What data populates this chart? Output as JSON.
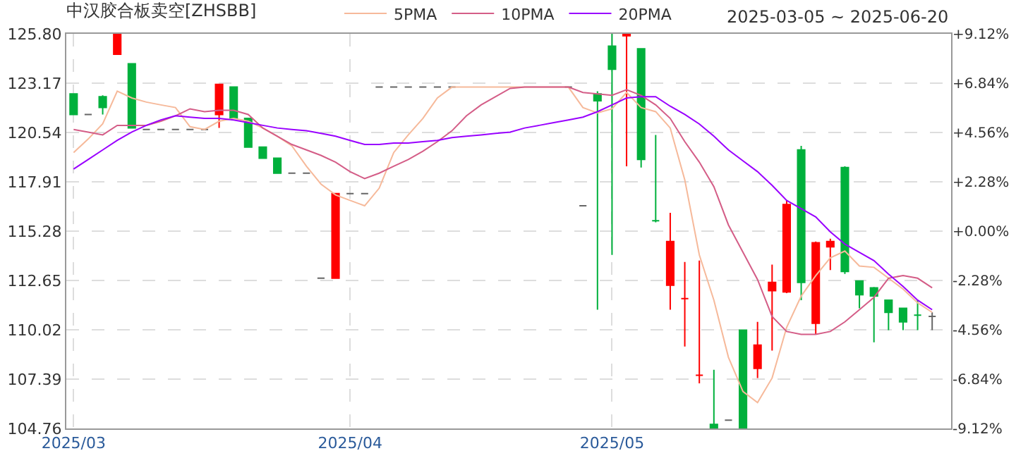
{
  "chart_data": {
    "type": "candlestick",
    "title": "中汉胶合板卖空[ZHSBB]",
    "annotations": [
      "2025-03-05 ~ 2025-06-20"
    ],
    "categories": [
      "2025/03",
      null,
      null,
      null,
      null,
      null,
      null,
      null,
      null,
      null,
      null,
      null,
      null,
      null,
      null,
      null,
      null,
      null,
      null,
      "2025/04",
      null,
      null,
      null,
      null,
      null,
      null,
      null,
      null,
      null,
      null,
      null,
      null,
      null,
      null,
      null,
      null,
      null,
      "2025/05",
      null,
      null,
      null,
      null,
      null,
      null,
      null,
      null,
      null,
      null,
      null,
      null,
      null,
      null,
      null,
      null,
      null,
      null,
      null,
      null,
      null,
      null
    ],
    "ohlc": [
      [
        122.6,
        122.6,
        121.5,
        121.5
      ],
      [
        121.5,
        121.5,
        121.5,
        121.5
      ],
      [
        122.45,
        122.52,
        121.5,
        121.87
      ],
      [
        124.71,
        125.8,
        124.71,
        125.8
      ],
      [
        124.2,
        124.2,
        120.78,
        120.78
      ],
      [
        120.7,
        120.7,
        120.7,
        120.7
      ],
      [
        120.7,
        120.7,
        120.7,
        120.7
      ],
      [
        120.7,
        120.7,
        120.7,
        120.7
      ],
      [
        120.7,
        120.7,
        120.7,
        120.7
      ],
      [
        120.7,
        120.7,
        120.7,
        120.7
      ],
      [
        121.5,
        123.1,
        120.78,
        123.1
      ],
      [
        122.96,
        122.96,
        121.29,
        121.29
      ],
      [
        121.29,
        121.29,
        119.76,
        119.76
      ],
      [
        119.76,
        119.76,
        119.17,
        119.17
      ],
      [
        119.17,
        119.17,
        118.37,
        118.37
      ],
      [
        118.37,
        118.37,
        118.37,
        118.37
      ],
      [
        118.37,
        118.37,
        118.37,
        118.37
      ],
      [
        112.77,
        112.77,
        112.77,
        112.77
      ],
      [
        112.77,
        117.28,
        112.77,
        117.28
      ],
      [
        117.28,
        117.28,
        117.28,
        117.28
      ],
      [
        117.28,
        117.28,
        117.28,
        117.28
      ],
      [
        122.96,
        122.96,
        122.96,
        122.96
      ],
      [
        122.96,
        122.96,
        122.96,
        122.96
      ],
      [
        122.96,
        122.96,
        122.96,
        122.96
      ],
      [
        122.96,
        122.96,
        122.96,
        122.96
      ],
      [
        122.96,
        122.96,
        122.96,
        122.96
      ],
      [
        122.96,
        122.96,
        122.96,
        122.96
      ],
      null,
      null,
      null,
      null,
      null,
      null,
      null,
      [
        122.96,
        122.96,
        122.96,
        122.96
      ],
      [
        116.63,
        116.63,
        116.63,
        116.63
      ],
      [
        122.6,
        122.74,
        111.09,
        122.23
      ],
      [
        125.14,
        125.8,
        114.01,
        123.91
      ],
      [
        125.7,
        125.8,
        118.74,
        125.8
      ],
      [
        125.0,
        125.0,
        118.67,
        119.1
      ],
      [
        115.83,
        120.41,
        115.75,
        115.83
      ],
      [
        112.4,
        116.26,
        111.09,
        114.73
      ],
      [
        111.68,
        113.64,
        109.13,
        111.68
      ],
      [
        107.6,
        113.71,
        107.16,
        107.6
      ],
      [
        104.98,
        107.89,
        104.76,
        104.76
      ],
      [
        105.2,
        105.2,
        105.2,
        105.2
      ],
      [
        110.0,
        110.0,
        104.76,
        104.76
      ],
      [
        107.96,
        110.44,
        107.45,
        109.2
      ],
      [
        112.11,
        113.5,
        108.91,
        112.55
      ],
      [
        112.04,
        116.92,
        111.97,
        116.7
      ],
      [
        119.61,
        119.83,
        111.6,
        112.55
      ],
      [
        110.37,
        114.73,
        109.78,
        114.66
      ],
      [
        114.44,
        114.88,
        113.2,
        114.73
      ],
      [
        118.67,
        118.74,
        113.0,
        113.13
      ],
      [
        112.62,
        112.62,
        111.17,
        111.89
      ],
      [
        112.26,
        112.3,
        109.35,
        111.82
      ],
      [
        111.6,
        111.6,
        110.0,
        110.95
      ],
      [
        111.17,
        111.17,
        110.0,
        110.44
      ],
      [
        110.8,
        111.6,
        110.0,
        110.8
      ],
      [
        110.73,
        110.95,
        110.0,
        110.73
      ]
    ],
    "colors": [
      "#00b03c",
      "#666666",
      "#00b03c",
      "#ff0000",
      "#00b03c",
      "#666666",
      "#666666",
      "#666666",
      "#666666",
      "#666666",
      "#ff0000",
      "#00b03c",
      "#00b03c",
      "#00b03c",
      "#00b03c",
      "#666666",
      "#666666",
      "#666666",
      "#ff0000",
      "#666666",
      "#666666",
      "#666666",
      "#666666",
      "#666666",
      "#666666",
      "#666666",
      "#666666",
      "#666666",
      "#666666",
      "#666666",
      "#666666",
      "#666666",
      "#666666",
      "#666666",
      "#666666",
      "#666666",
      "#00b03c",
      "#00b03c",
      "#ff0000",
      "#00b03c",
      "#00b03c",
      "#ff0000",
      "#ff0000",
      "#ff0000",
      "#00b03c",
      "#666666",
      "#00b03c",
      "#ff0000",
      "#ff0000",
      "#ff0000",
      "#00b03c",
      "#ff0000",
      "#ff0000",
      "#00b03c",
      "#00b03c",
      "#00b03c",
      "#00b03c",
      "#00b03c",
      "#00b03c",
      "#666666"
    ],
    "series": [
      {
        "name": "5PMA",
        "type": "line",
        "color": "#f6b99a",
        "values": [
          119.47,
          120.19,
          121.0,
          122.74,
          122.38,
          122.16,
          122.01,
          121.87,
          120.85,
          120.7,
          121.14,
          121.29,
          121.14,
          120.78,
          120.34,
          119.83,
          118.74,
          117.79,
          117.21,
          116.92,
          116.63,
          117.57,
          119.47,
          120.41,
          121.29,
          122.38,
          122.96,
          122.96,
          122.96,
          122.96,
          122.96,
          122.96,
          122.96,
          122.96,
          122.96,
          121.87,
          121.58,
          121.8,
          122.67,
          121.87,
          121.65,
          120.78,
          118.01,
          114.01,
          111.6,
          108.55,
          106.73,
          106.14,
          107.45,
          110.15,
          111.82,
          112.91,
          113.86,
          114.22,
          113.42,
          113.35,
          112.77,
          112.19,
          111.46,
          110.95
        ]
      },
      {
        "name": "10PMA",
        "type": "line",
        "color": "#d45d87",
        "values": [
          120.7,
          120.56,
          120.41,
          120.92,
          120.92,
          120.92,
          121.14,
          121.43,
          121.8,
          121.65,
          121.72,
          121.72,
          121.5,
          120.78,
          120.34,
          119.9,
          119.61,
          119.32,
          118.96,
          118.45,
          118.08,
          118.37,
          118.74,
          119.1,
          119.54,
          120.05,
          120.63,
          121.43,
          122.01,
          122.45,
          122.89,
          122.96,
          122.96,
          122.96,
          122.96,
          122.67,
          122.6,
          122.52,
          122.82,
          122.52,
          122.01,
          121.29,
          120.05,
          118.96,
          117.65,
          115.61,
          114.15,
          112.7,
          110.73,
          109.93,
          109.78,
          109.78,
          109.93,
          110.44,
          111.09,
          111.75,
          112.77,
          112.91,
          112.77,
          112.26
        ]
      },
      {
        "name": "20PMA",
        "type": "line",
        "color": "#9900ff",
        "values": [
          118.59,
          119.1,
          119.61,
          120.12,
          120.56,
          120.92,
          121.21,
          121.43,
          121.36,
          121.29,
          121.29,
          121.21,
          121.07,
          120.92,
          120.78,
          120.7,
          120.63,
          120.49,
          120.34,
          120.12,
          119.9,
          119.9,
          119.98,
          119.98,
          120.05,
          120.12,
          120.27,
          120.34,
          120.41,
          120.49,
          120.56,
          120.78,
          120.92,
          121.07,
          121.21,
          121.36,
          121.65,
          122.01,
          122.38,
          122.45,
          122.45,
          121.94,
          121.5,
          120.99,
          120.34,
          119.61,
          119.03,
          118.45,
          117.72,
          116.92,
          116.48,
          116.04,
          115.24,
          114.59,
          114.15,
          113.71,
          112.99,
          112.33,
          111.6,
          111.09
        ]
      }
    ],
    "ylim": [
      104.76,
      125.8
    ],
    "yticks": [
      104.76,
      107.39,
      110.02,
      112.65,
      115.28,
      117.91,
      120.54,
      123.17,
      {
        "value": 125.8,
        "label": "125.80"
      }
    ],
    "y2lim": [
      -9.12,
      9.12
    ],
    "y2ticks": [
      {
        "value": -9.12,
        "label": "-9.12%"
      },
      {
        "value": -6.84,
        "label": "-6.84%"
      },
      {
        "value": -4.56,
        "label": "-4.56%"
      },
      {
        "value": -2.28,
        "label": "-2.28%"
      },
      {
        "value": 0,
        "label": "+0.00%"
      },
      {
        "value": 2.28,
        "label": "+2.28%"
      },
      {
        "value": 4.56,
        "label": "+4.56%"
      },
      {
        "value": 6.84,
        "label": "+6.84%"
      },
      {
        "value": 9.12,
        "label": "+9.12%"
      }
    ],
    "grid": true,
    "legend": "top"
  }
}
